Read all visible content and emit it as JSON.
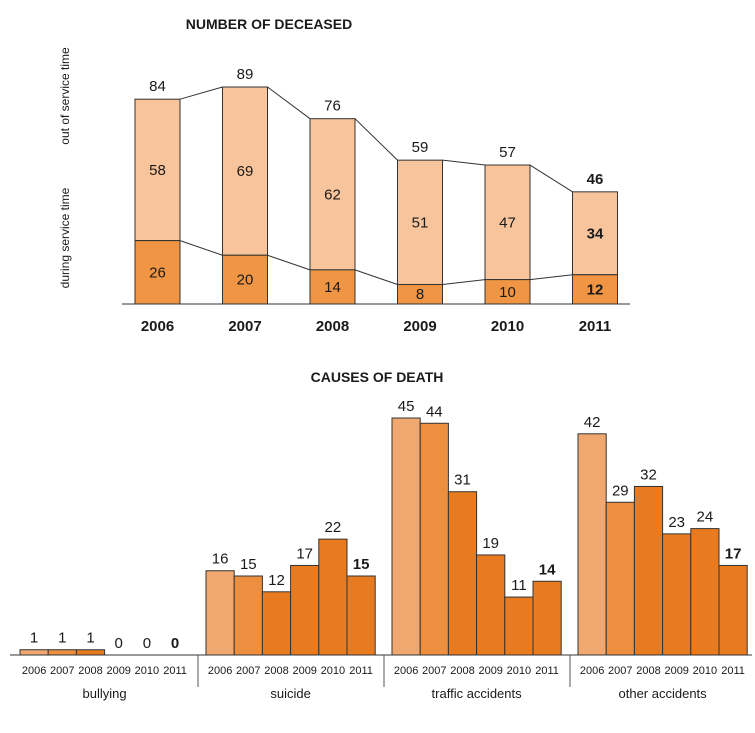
{
  "chart_data": [
    {
      "type": "bar",
      "stacked": true,
      "title": "NUMBER OF DECEASED",
      "categories": [
        "2006",
        "2007",
        "2008",
        "2009",
        "2010",
        "2011"
      ],
      "totals": [
        84,
        89,
        76,
        59,
        57,
        46
      ],
      "series": [
        {
          "name": "during service time",
          "values": [
            26,
            20,
            14,
            8,
            10,
            12
          ]
        },
        {
          "name": "out of service time",
          "values": [
            58,
            69,
            62,
            51,
            47,
            34
          ]
        }
      ],
      "ylim": [
        0,
        89
      ],
      "bold_category": "2011",
      "colors": {
        "during": "#ef9543",
        "out": "#f7c49c",
        "stroke": "#333333"
      }
    },
    {
      "type": "bar",
      "title": "CAUSES OF DEATH",
      "categories": [
        "2006",
        "2007",
        "2008",
        "2009",
        "2010",
        "2011"
      ],
      "groups": [
        {
          "name": "bullying",
          "values": [
            1,
            1,
            1,
            0,
            0,
            0
          ]
        },
        {
          "name": "suicide",
          "values": [
            16,
            15,
            12,
            17,
            22,
            15
          ]
        },
        {
          "name": "traffic accidents",
          "values": [
            45,
            44,
            31,
            19,
            11,
            14
          ]
        },
        {
          "name": "other accidents",
          "values": [
            42,
            29,
            32,
            23,
            24,
            17
          ]
        }
      ],
      "ylim": [
        0,
        45
      ],
      "bold_category": "2011",
      "colors": [
        "#f0a870",
        "#ec8f3e",
        "#e87b1f",
        "#e87b1f",
        "#e87b1f",
        "#e87b1f"
      ]
    }
  ]
}
